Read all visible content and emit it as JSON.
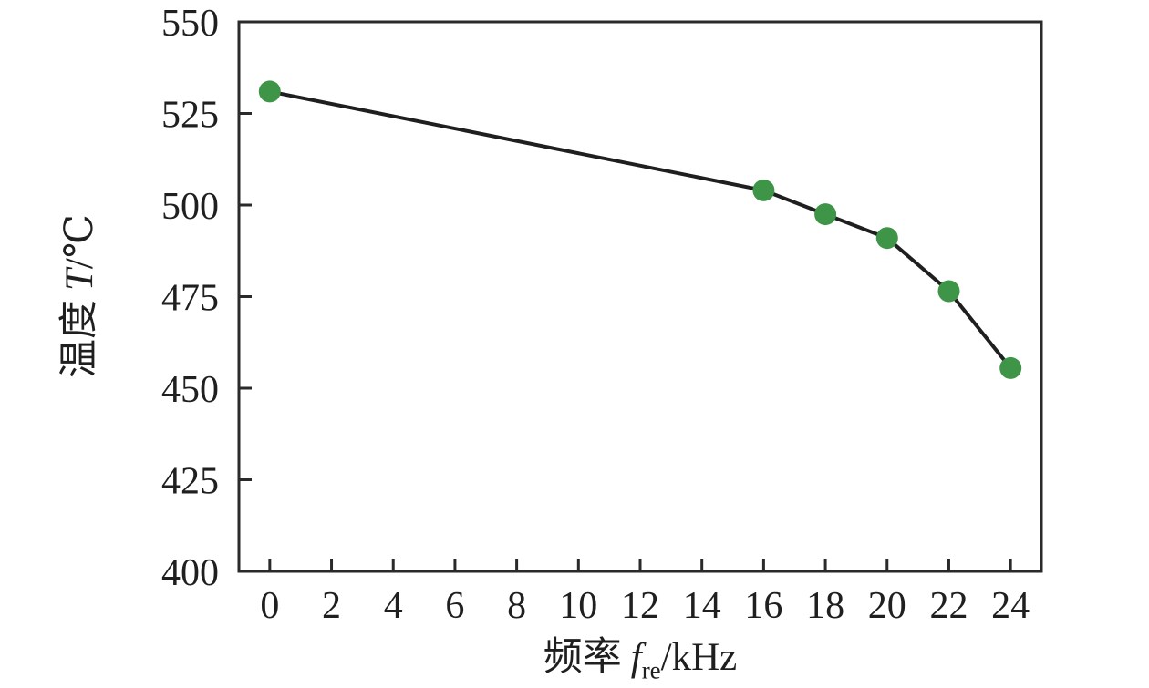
{
  "figure": {
    "background": "#ffffff"
  },
  "chart_data": {
    "type": "line",
    "title": "",
    "xlabel": "频率 f_re/kHz",
    "ylabel": "温度 T/℃",
    "xlabel_parts": {
      "cjk": "频率",
      "symbol": "f",
      "subscript": "re",
      "unit": "/kHz"
    },
    "ylabel_parts": {
      "cjk": "温度",
      "symbol": "T",
      "unit": "/℃"
    },
    "series": [
      {
        "name": "temperature-vs-frequency",
        "x": [
          0,
          16,
          18,
          20,
          22,
          24
        ],
        "y": [
          531,
          504,
          497.5,
          491,
          476.5,
          455.5
        ]
      }
    ],
    "xticks": [
      0,
      2,
      4,
      6,
      8,
      10,
      12,
      14,
      16,
      18,
      20,
      22,
      24
    ],
    "yticks": [
      400,
      425,
      450,
      475,
      500,
      525,
      550
    ],
    "xlim": [
      -1,
      25
    ],
    "ylim": [
      400,
      550
    ],
    "grid": false,
    "legend": "none",
    "marker_shape": "circle",
    "colors": {
      "marker": "#3e9547",
      "line": "#1f1f1f",
      "axis": "#2a2a2a",
      "text": "#1f1f1f"
    }
  }
}
